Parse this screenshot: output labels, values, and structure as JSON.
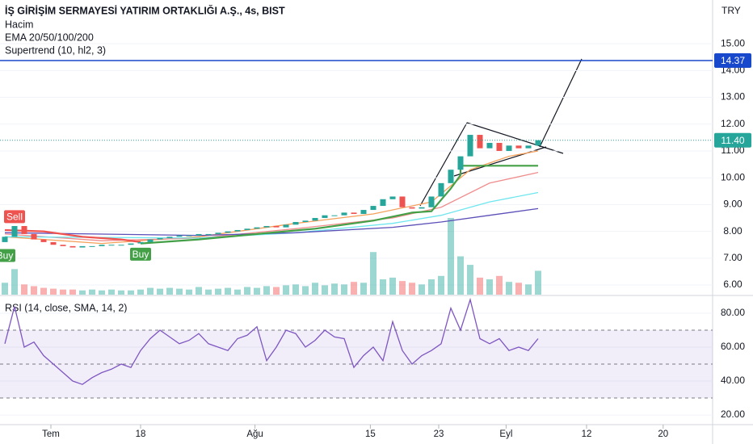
{
  "chart_data": [
    {
      "type": "candlestick",
      "title": "İŞ GİRİŞİM SERMAYESİ YATIRIM ORTAKLIĞI A.Ş., 4s, BIST",
      "indicators": [
        "Hacim",
        "EMA 20/50/100/200",
        "Supertrend (10, hl2, 3)"
      ],
      "currency": "TRY",
      "up_color": "#26a69a",
      "down_color": "#ef5350",
      "opens": [
        7.6,
        7.8,
        8.2,
        7.9,
        7.7,
        7.6,
        7.5,
        7.45,
        7.4,
        7.45,
        7.45,
        7.5,
        7.5,
        7.5,
        7.55,
        7.6,
        7.7,
        7.75,
        7.8,
        7.85,
        7.85,
        7.9,
        7.9,
        7.95,
        8.0,
        8.05,
        8.1,
        8.15,
        8.2,
        8.15,
        8.25,
        8.35,
        8.4,
        8.5,
        8.6,
        8.6,
        8.7,
        8.65,
        8.8,
        8.95,
        9.2,
        9.3,
        8.9,
        8.85,
        8.9,
        9.3,
        9.8,
        10.3,
        10.8,
        11.6,
        11.1,
        11.3,
        11.0,
        11.2,
        11.1,
        11.2
      ],
      "closes": [
        7.8,
        8.2,
        7.9,
        7.7,
        7.6,
        7.5,
        7.45,
        7.4,
        7.45,
        7.45,
        7.5,
        7.5,
        7.5,
        7.55,
        7.6,
        7.7,
        7.75,
        7.8,
        7.85,
        7.85,
        7.9,
        7.9,
        7.95,
        8.0,
        8.05,
        8.1,
        8.15,
        8.2,
        8.15,
        8.25,
        8.35,
        8.4,
        8.5,
        8.6,
        8.6,
        8.7,
        8.65,
        8.8,
        8.95,
        9.2,
        9.3,
        8.9,
        8.85,
        8.9,
        9.3,
        9.8,
        10.3,
        10.8,
        11.6,
        11.1,
        11.3,
        11.0,
        11.2,
        11.1,
        11.2,
        11.4
      ],
      "volume": [
        14,
        30,
        12,
        10,
        8,
        7,
        6,
        6,
        5,
        6,
        5,
        6,
        5,
        5,
        6,
        8,
        7,
        8,
        7,
        6,
        9,
        6,
        7,
        8,
        6,
        9,
        8,
        10,
        9,
        11,
        12,
        10,
        14,
        11,
        13,
        12,
        15,
        14,
        50,
        18,
        20,
        16,
        14,
        12,
        18,
        22,
        90,
        45,
        35,
        20,
        18,
        22,
        15,
        14,
        12,
        28
      ],
      "series": [
        {
          "name": "EMA 20",
          "color": "#f5a05a",
          "x": [
            0,
            10,
            20,
            30,
            38,
            44,
            48,
            52,
            55
          ],
          "values": [
            7.8,
            7.55,
            7.8,
            8.3,
            8.65,
            9.1,
            10.3,
            10.8,
            11.0
          ]
        },
        {
          "name": "EMA 50",
          "color": "#f08c8c",
          "x": [
            0,
            10,
            20,
            30,
            40,
            45,
            50,
            55
          ],
          "values": [
            7.9,
            7.65,
            7.75,
            8.1,
            8.5,
            8.9,
            9.8,
            10.2
          ]
        },
        {
          "name": "EMA 100",
          "color": "#6ee6ee",
          "x": [
            0,
            20,
            30,
            40,
            45,
            50,
            55
          ],
          "values": [
            7.8,
            7.75,
            7.95,
            8.3,
            8.6,
            9.1,
            9.45
          ]
        },
        {
          "name": "EMA 200",
          "color": "#5b4fb8",
          "x": [
            0,
            20,
            30,
            40,
            45,
            50,
            55
          ],
          "values": [
            7.95,
            7.85,
            7.95,
            8.15,
            8.35,
            8.6,
            8.85
          ]
        },
        {
          "name": "Supertrend down",
          "color": "#ef5350",
          "x": [
            0,
            4,
            8,
            12,
            14
          ],
          "values": [
            8.05,
            8.0,
            7.8,
            7.7,
            7.6
          ]
        },
        {
          "name": "Supertrend up",
          "color": "#43a047",
          "x": [
            14,
            20,
            26,
            32,
            38,
            42,
            44,
            46,
            47,
            47,
            55
          ],
          "values": [
            7.55,
            7.7,
            7.9,
            8.1,
            8.4,
            8.7,
            8.75,
            9.6,
            10.1,
            10.45,
            10.45
          ]
        }
      ],
      "signals": [
        {
          "x": 1,
          "y": 8.55,
          "label": "Sell"
        },
        {
          "x": 0,
          "y": 7.1,
          "label": "Buy"
        },
        {
          "x": 14,
          "y": 7.15,
          "label": "Buy"
        }
      ],
      "hline": {
        "value": 14.37,
        "color": "#1848cc"
      },
      "last": {
        "value": 11.4,
        "label": "11.40"
      },
      "xlim": [
        -0.5,
        73
      ],
      "ylim": [
        5.64,
        16.63
      ],
      "yticks": [
        {
          "value": 6,
          "label": "6.00"
        },
        {
          "value": 7,
          "label": "7.00"
        },
        {
          "value": 8,
          "label": "8.00"
        },
        {
          "value": 9,
          "label": "9.00"
        },
        {
          "value": 10,
          "label": "10.00"
        },
        {
          "value": 11,
          "label": "11.00"
        },
        {
          "value": 12,
          "label": "12.00"
        },
        {
          "value": 13,
          "label": "13.00"
        },
        {
          "value": 14,
          "label": "14.00"
        },
        {
          "value": 15,
          "label": "15.00"
        }
      ]
    },
    {
      "type": "line",
      "title": "RSI (14, close, SMA, 14, 2)",
      "color": "#7e57c2",
      "x_start": 0,
      "values": [
        62,
        84,
        60,
        63,
        55,
        50,
        45,
        40,
        38,
        42,
        45,
        47,
        50,
        48,
        58,
        65,
        70,
        66,
        62,
        64,
        68,
        62,
        60,
        58,
        65,
        67,
        72,
        52,
        60,
        70,
        68,
        60,
        64,
        70,
        66,
        65,
        48,
        55,
        60,
        52,
        75,
        58,
        50,
        55,
        58,
        62,
        83,
        70,
        88,
        65,
        62,
        65,
        58,
        60,
        58,
        65
      ],
      "hlines": [
        70,
        50,
        30
      ],
      "xlim": [
        -0.5,
        73
      ],
      "ylim": [
        14.8,
        87.6
      ],
      "yticks": [
        {
          "value": 20,
          "label": "20.00"
        },
        {
          "value": 40,
          "label": "40.00"
        },
        {
          "value": 60,
          "label": "60.00"
        },
        {
          "value": 80,
          "label": "80.00"
        }
      ],
      "xticks": [
        {
          "value": 4.75,
          "label": "Tem"
        },
        {
          "value": 14,
          "label": "18"
        },
        {
          "value": 25.8,
          "label": "Ağu"
        },
        {
          "value": 37.7,
          "label": "15"
        },
        {
          "value": 44.75,
          "label": "23"
        },
        {
          "value": 51.7,
          "label": "Eyl"
        },
        {
          "value": 60,
          "label": "12"
        },
        {
          "value": 67.9,
          "label": "20"
        }
      ]
    }
  ]
}
